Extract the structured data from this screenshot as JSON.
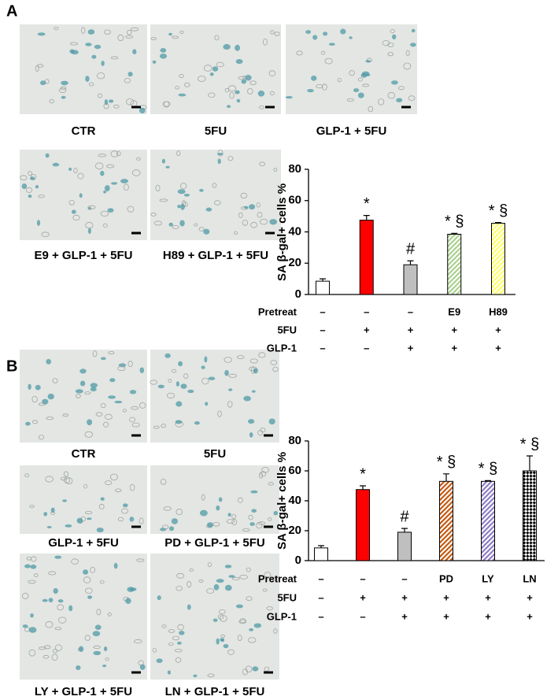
{
  "panels": [
    {
      "label": "A",
      "captions": [
        "CTR",
        "5FU",
        "GLP-1 + 5FU",
        "E9 + GLP-1 + 5FU",
        "H89 + GLP-1 + 5FU"
      ]
    },
    {
      "label": "B",
      "captions": [
        "CTR",
        "5FU",
        "GLP-1 + 5FU",
        "PD + GLP-1 + 5FU",
        "LY + GLP-1 + 5FU",
        "LN + GLP-1 + 5FU"
      ]
    }
  ],
  "chart_data": [
    {
      "type": "bar",
      "y_label": "SA β-gal+ cells %",
      "ylim": [
        0,
        80
      ],
      "yticks": [
        0,
        20,
        40,
        60,
        80
      ],
      "values": [
        8.5,
        47.5,
        19,
        38.5,
        45.5
      ],
      "errors": [
        1.5,
        3,
        2.5,
        0.6,
        0.5
      ],
      "colors": [
        "#ffffff",
        "#ff0000",
        "#bfbfbf",
        "#a9d18e",
        "#ffff66"
      ],
      "fills": [
        "solid",
        "solid",
        "solid",
        "hatch",
        "hatch"
      ],
      "annotations": [
        null,
        "*",
        "#",
        "* §",
        "* §"
      ],
      "conditions": [
        {
          "name": "Pretreat",
          "values": [
            "–",
            "–",
            "–",
            "E9",
            "H89"
          ]
        },
        {
          "name": "5FU",
          "values": [
            "–",
            "+",
            "+",
            "+",
            "+"
          ]
        },
        {
          "name": "GLP-1",
          "values": [
            "–",
            "–",
            "+",
            "+",
            "+"
          ]
        }
      ]
    },
    {
      "type": "bar",
      "y_label": "SA β-gal+ cells %",
      "ylim": [
        0,
        80
      ],
      "yticks": [
        0,
        20,
        40,
        60,
        80
      ],
      "values": [
        8.5,
        47.5,
        19,
        53,
        53,
        60
      ],
      "errors": [
        1.5,
        2.5,
        2.5,
        5,
        0.5,
        10
      ],
      "colors": [
        "#ffffff",
        "#ff0000",
        "#bfbfbf",
        "#c55a11",
        "#8e7cc3",
        "#000000"
      ],
      "fills": [
        "solid",
        "solid",
        "solid",
        "hatch",
        "hatch",
        "checker"
      ],
      "annotations": [
        null,
        "*",
        "#",
        "* §",
        "* §",
        "* §"
      ],
      "conditions": [
        {
          "name": "Pretreat",
          "values": [
            "–",
            "–",
            "–",
            "PD",
            "LY",
            "LN"
          ]
        },
        {
          "name": "5FU",
          "values": [
            "–",
            "+",
            "+",
            "+",
            "+",
            "+"
          ]
        },
        {
          "name": "GLP-1",
          "values": [
            "–",
            "–",
            "+",
            "+",
            "+",
            "+"
          ]
        }
      ]
    }
  ]
}
